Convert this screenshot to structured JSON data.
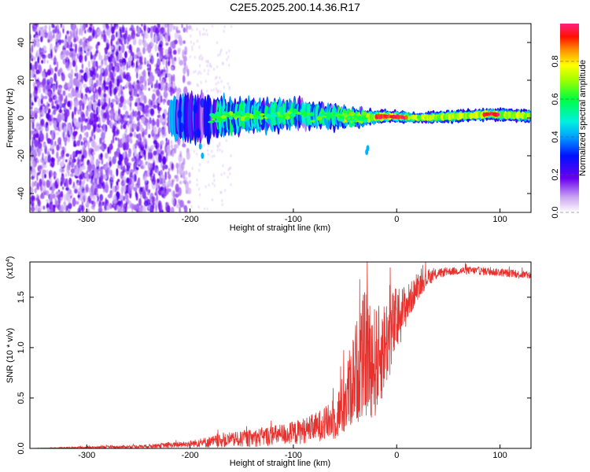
{
  "title": "C2E5.2025.200.14.36.R17",
  "chart_data": [
    {
      "type": "heatmap",
      "xlabel": "Height of straight line (km)",
      "ylabel": "Frequency (Hz)",
      "xlim": [
        -355,
        130
      ],
      "ylim": [
        -50,
        50
      ],
      "x_ticks": [
        -300,
        -200,
        -100,
        0,
        100
      ],
      "x_tick_labels": [
        "-300",
        "-200",
        "-100",
        "0",
        "100"
      ],
      "y_ticks": [
        -40,
        -20,
        0,
        20,
        40
      ],
      "y_tick_labels": [
        "-40",
        "-20",
        "0",
        "20",
        "40"
      ],
      "colorbar": {
        "label": "Normalized spectral amplitude",
        "range": [
          0,
          1
        ],
        "ticks": [
          0.0,
          0.2,
          0.4,
          0.6,
          0.8
        ],
        "tick_labels": [
          "0.0",
          "0.2",
          "0.4",
          "0.6",
          "0.8"
        ]
      },
      "ridge": [
        {
          "x": -215,
          "freq": 0,
          "width": 20,
          "amp": 0.15
        },
        {
          "x": -190,
          "freq": 0,
          "width": 22,
          "amp": 0.2
        },
        {
          "x": -150,
          "freq": 1,
          "width": 16,
          "amp": 0.45
        },
        {
          "x": -100,
          "freq": 2,
          "width": 14,
          "amp": 0.5
        },
        {
          "x": -60,
          "freq": 1,
          "width": 12,
          "amp": 0.5
        },
        {
          "x": -30,
          "freq": 0,
          "width": 8,
          "amp": 0.7
        },
        {
          "x": -10,
          "freq": 1,
          "width": 6,
          "amp": 0.9
        },
        {
          "x": 20,
          "freq": 0,
          "width": 5,
          "amp": 0.75
        },
        {
          "x": 60,
          "freq": 1,
          "width": 6,
          "amp": 0.6
        },
        {
          "x": 90,
          "freq": 2,
          "width": 6,
          "amp": 0.85
        },
        {
          "x": 130,
          "freq": 1,
          "width": 6,
          "amp": 0.6
        }
      ]
    },
    {
      "type": "line",
      "xlabel": "Height of straight line (km)",
      "ylabel": "SNR (10 * v/v)",
      "y_multiplier": "(x10",
      "y_multiplier_exp": "4",
      "y_multiplier_close": ")",
      "xlim": [
        -355,
        130
      ],
      "ylim": [
        0,
        1.85
      ],
      "x_ticks": [
        -300,
        -200,
        -100,
        0,
        100
      ],
      "x_tick_labels": [
        "-300",
        "-200",
        "-100",
        "0",
        "100"
      ],
      "y_ticks": [
        0.0,
        0.5,
        1.0,
        1.5
      ],
      "y_tick_labels": [
        "0.0",
        "0.5",
        "1.0",
        "1.5"
      ],
      "color": "#e8302c",
      "series": [
        {
          "x": [
            -355,
            -300,
            -250,
            -210,
            -200,
            -180,
            -160,
            -140,
            -120,
            -100,
            -80,
            -60,
            -50,
            -40,
            -30,
            -20,
            -10,
            0,
            10,
            20,
            30,
            40,
            50,
            70,
            90,
            110,
            130
          ],
          "y": [
            0.0,
            0.01,
            0.02,
            0.04,
            0.05,
            0.07,
            0.09,
            0.11,
            0.14,
            0.16,
            0.22,
            0.3,
            0.5,
            0.8,
            1.0,
            0.9,
            1.1,
            1.3,
            1.45,
            1.6,
            1.7,
            1.74,
            1.76,
            1.77,
            1.76,
            1.74,
            1.72
          ],
          "noise": [
            0.0,
            0.01,
            0.015,
            0.03,
            0.03,
            0.06,
            0.07,
            0.09,
            0.1,
            0.12,
            0.14,
            0.2,
            0.35,
            0.5,
            0.65,
            0.55,
            0.45,
            0.35,
            0.2,
            0.12,
            0.08,
            0.05,
            0.04,
            0.04,
            0.04,
            0.04,
            0.04
          ]
        }
      ]
    }
  ]
}
